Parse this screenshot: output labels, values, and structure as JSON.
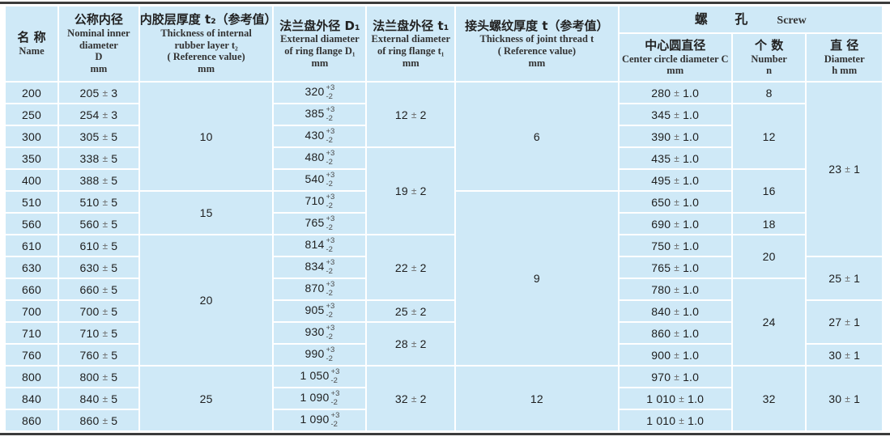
{
  "table": {
    "headers": {
      "name": {
        "zh": "名  称",
        "en": "Name"
      },
      "inner_diameter": {
        "zh": "公称内径",
        "en": "Nominal inner\ndiameter\nD\nmm"
      },
      "rubber_thickness": {
        "zh": "内胶层厚度 t₂（参考值）",
        "en": "Thickness of internal\nrubber layer t₂\n( Reference value)\nmm"
      },
      "flange_outer_d1": {
        "zh": "法兰盘外径 D₁",
        "en": "External diameter\nof ring flange D₁\nmm"
      },
      "flange_outer_t1": {
        "zh": "法兰盘外径  t₁",
        "en": "External diameter\nof ring flange t₁\nmm"
      },
      "joint_thread": {
        "zh": "接头螺纹厚度 t（参考值）",
        "en": "Thickness of joint thread t\n( Reference value)\nmm"
      },
      "screw_group": {
        "zh": "螺  孔",
        "en": "Screw"
      },
      "center_circle": {
        "zh": "中心圆直径",
        "en": "Center circle diameter C\nmm"
      },
      "number": {
        "zh": "个  数",
        "en": "Number\nn"
      },
      "diameter_h": {
        "zh": "直  径",
        "en": "Diameter\nh  mm"
      }
    },
    "d1_tolerance": {
      "plus": "+3",
      "minus": "-2"
    },
    "rows": [
      {
        "name": "200",
        "d": "205 ± 3",
        "t2": {
          "v": "10",
          "span": 5
        },
        "d1": "320",
        "t1": {
          "v": "12 ± 2",
          "span": 3
        },
        "t": {
          "v": "6",
          "span": 5
        },
        "c": "280 ± 1.0",
        "n": {
          "v": "8",
          "span": 1
        },
        "h": {
          "v": "23 ± 1",
          "span": 8
        }
      },
      {
        "name": "250",
        "d": "254 ± 3",
        "d1": "385",
        "c": "345 ± 1.0",
        "n": {
          "v": "12",
          "span": 3
        }
      },
      {
        "name": "300",
        "d": "305 ± 5",
        "d1": "430",
        "c": "390 ± 1.0"
      },
      {
        "name": "350",
        "d": "338 ± 5",
        "d1": "480",
        "t1": {
          "v": "19 ± 2",
          "span": 4
        },
        "c": "435 ± 1.0"
      },
      {
        "name": "400",
        "d": "388 ± 5",
        "d1": "540",
        "c": "495 ± 1.0",
        "n": {
          "v": "16",
          "span": 2
        }
      },
      {
        "name": "510",
        "d": "510 ± 5",
        "t2": {
          "v": "15",
          "span": 2
        },
        "d1": "710",
        "t": {
          "v": "9",
          "span": 8
        },
        "c": "650 ± 1.0"
      },
      {
        "name": "560",
        "d": "560 ± 5",
        "d1": "765",
        "c": "690 ± 1.0",
        "n": {
          "v": "18",
          "span": 1
        }
      },
      {
        "name": "610",
        "d": "610 ± 5",
        "t2": {
          "v": "20",
          "span": 6
        },
        "d1": "814",
        "t1": {
          "v": "22 ± 2",
          "span": 3
        },
        "c": "750 ± 1.0",
        "n": {
          "v": "20",
          "span": 2
        }
      },
      {
        "name": "630",
        "d": "630 ± 5",
        "d1": "834",
        "c": "765 ± 1.0",
        "h": {
          "v": "25 ± 1",
          "span": 2
        }
      },
      {
        "name": "660",
        "d": "660 ± 5",
        "d1": "870",
        "c": "780 ± 1.0",
        "n": {
          "v": "24",
          "span": 4
        }
      },
      {
        "name": "700",
        "d": "700 ± 5",
        "d1": "905",
        "t1": {
          "v": "25 ± 2",
          "span": 1
        },
        "c": "840 ± 1.0",
        "h": {
          "v": "27 ± 1",
          "span": 2
        }
      },
      {
        "name": "710",
        "d": "710 ± 5",
        "d1": "930",
        "t1": {
          "v": "28 ± 2",
          "span": 2
        },
        "c": "860 ± 1.0"
      },
      {
        "name": "760",
        "d": "760 ± 5",
        "d1": "990",
        "c": "900 ± 1.0",
        "h": {
          "v": "30 ± 1",
          "span": 1
        }
      },
      {
        "name": "800",
        "d": "800 ± 5",
        "t2": {
          "v": "25",
          "span": 3
        },
        "d1": "1 050",
        "t1": {
          "v": "32 ± 2",
          "span": 3
        },
        "t": {
          "v": "12",
          "span": 3
        },
        "c": "970 ± 1.0",
        "n": {
          "v": "32",
          "span": 3
        },
        "h": {
          "v": "30 ± 1",
          "span": 3
        }
      },
      {
        "name": "840",
        "d": "840 ± 5",
        "d1": "1 090",
        "c": "1 010 ± 1.0"
      },
      {
        "name": "860",
        "d": "860 ± 5",
        "d1": "1 090",
        "c": "1 010 ± 1.0"
      }
    ]
  },
  "colors": {
    "cell_background": "#cfe9f7",
    "grid_line": "#ffffff",
    "frame_rule": "#3b3b3b",
    "text": "#1e1e1e"
  }
}
